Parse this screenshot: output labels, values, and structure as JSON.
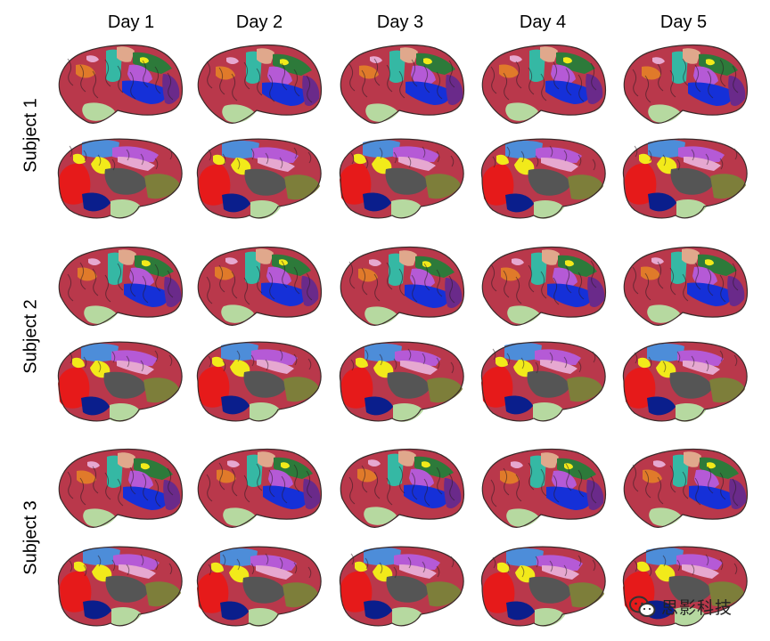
{
  "columns": [
    "Day 1",
    "Day 2",
    "Day 3",
    "Day 4",
    "Day 5"
  ],
  "rows": [
    "Subject 1",
    "Subject 2",
    "Subject 3"
  ],
  "views": [
    "lateral",
    "medial"
  ],
  "watermark": {
    "text": "思影科技",
    "icon": "wechat-logo-icon"
  },
  "colors": {
    "frontal": "#b9384b",
    "motor": "#35b8a4",
    "sensory": "#e0a88c",
    "parietal": "#2d7a3a",
    "temporal": "#1530d8",
    "insula": "#b55ad6",
    "occipital": "#6a2a8a",
    "orbital": "#e07a2a",
    "cerebellum": "#b6d9a0",
    "precuneus": "#4d8dd9",
    "cingulate": "#e6a8d0",
    "cuneus": "#f2ea1a",
    "lingual": "#e61a1a",
    "fusiform": "#0a1e8c",
    "subcortical": "#555555",
    "olive": "#7d7e3a"
  }
}
